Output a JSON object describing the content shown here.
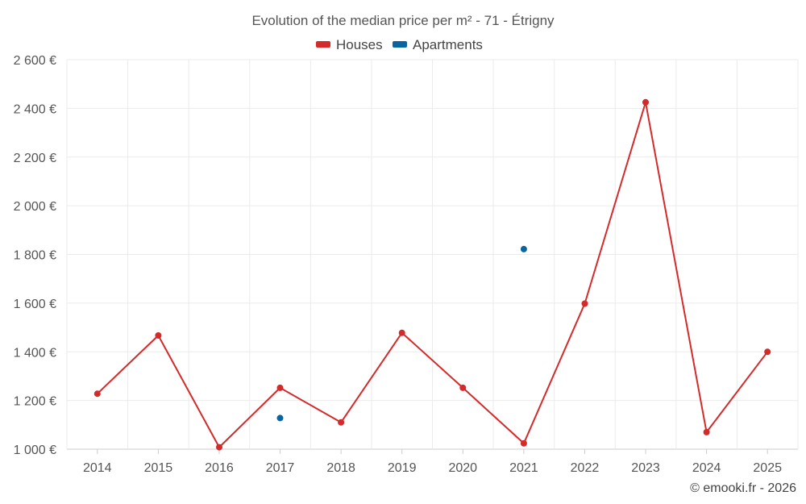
{
  "chart_data": {
    "type": "line",
    "title": "Evolution of the median price per m² - 71 - Étrigny",
    "categories": [
      "2014",
      "2015",
      "2016",
      "2017",
      "2018",
      "2019",
      "2020",
      "2021",
      "2022",
      "2023",
      "2024",
      "2025"
    ],
    "y_tick_labels": [
      "1 000 €",
      "1 200 €",
      "1 400 €",
      "1 600 €",
      "1 800 €",
      "2 000 €",
      "2 200 €",
      "2 400 €",
      "2 600 €"
    ],
    "y_ticks": [
      1000,
      1200,
      1400,
      1600,
      1800,
      2000,
      2200,
      2400,
      2600
    ],
    "ylim": [
      1000,
      2600
    ],
    "grid": true,
    "legend_position": "top-center",
    "series": [
      {
        "name": "Houses",
        "color": "#d42a2a",
        "line": true,
        "values": [
          1228,
          1467,
          1008,
          1252,
          1110,
          1478,
          1252,
          1024,
          1598,
          2425,
          1070,
          1400
        ]
      },
      {
        "name": "Apartments",
        "color": "#0a64a0",
        "line": false,
        "values": [
          null,
          null,
          null,
          1128,
          null,
          null,
          null,
          1822,
          null,
          null,
          null,
          null
        ]
      }
    ],
    "credit": "© emooki.fr - 2026"
  }
}
